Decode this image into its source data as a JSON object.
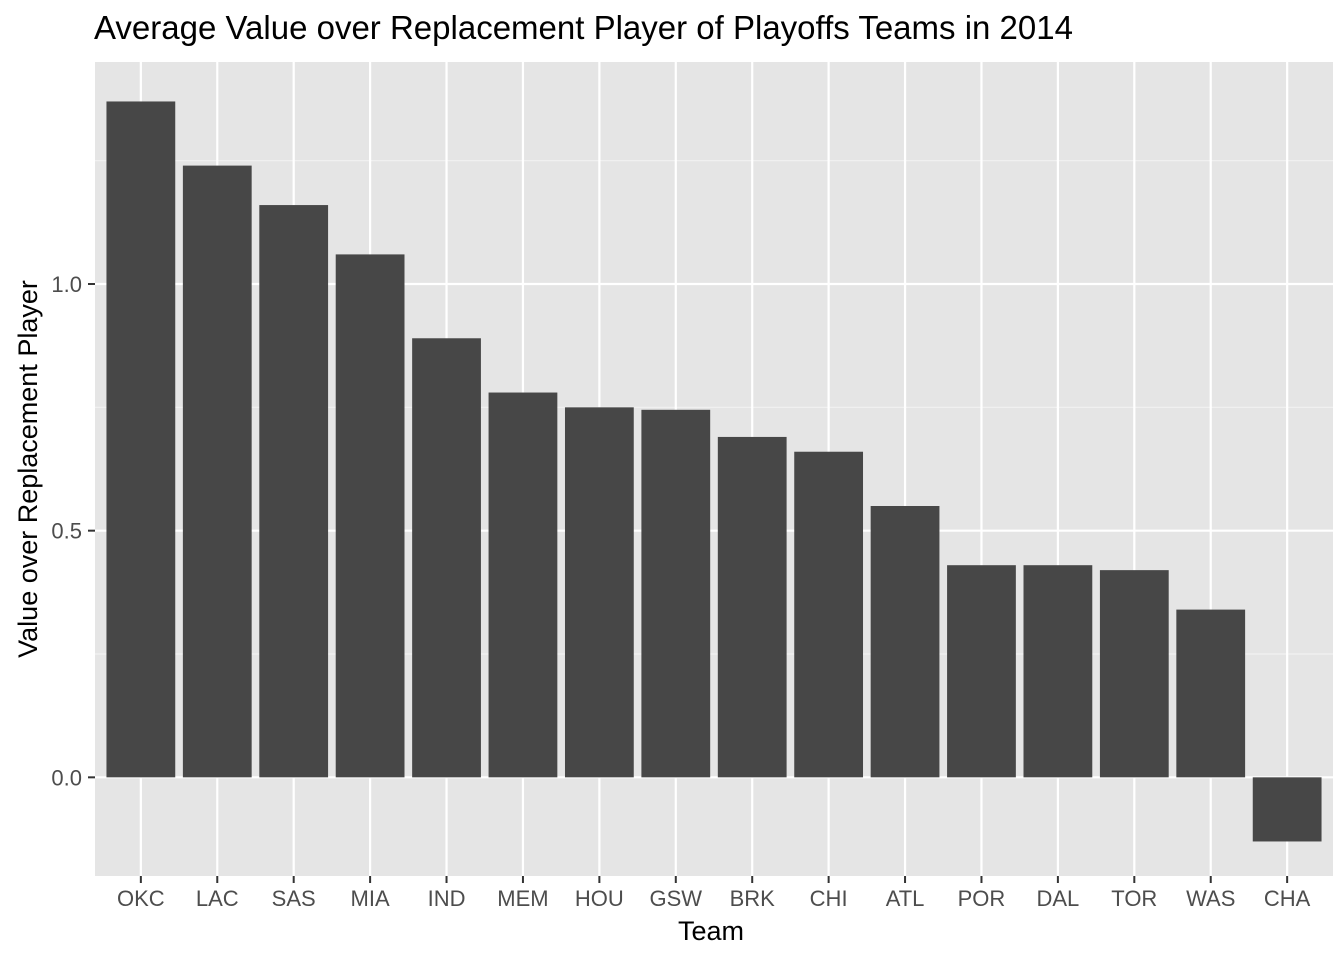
{
  "chart_data": {
    "type": "bar",
    "title": "Average Value over Replacement Player of Playoffs Teams in 2014",
    "xlabel": "Team",
    "ylabel": "Value over Replacement Player",
    "categories": [
      "OKC",
      "LAC",
      "SAS",
      "MIA",
      "IND",
      "MEM",
      "HOU",
      "GSW",
      "BRK",
      "CHI",
      "ATL",
      "POR",
      "DAL",
      "TOR",
      "WAS",
      "CHA"
    ],
    "values": [
      1.37,
      1.24,
      1.16,
      1.06,
      0.89,
      0.78,
      0.75,
      0.745,
      0.69,
      0.66,
      0.55,
      0.43,
      0.43,
      0.42,
      0.34,
      -0.13
    ],
    "ylim": [
      -0.2,
      1.45
    ],
    "yticks": [
      0.0,
      0.5,
      1.0
    ],
    "ytick_labels": [
      "0.0",
      "0.5",
      "1.0"
    ],
    "grid": true,
    "legend": "none",
    "colors": {
      "bar": "#474747",
      "panel_background": "#e5e5e5",
      "grid_major": "#ffffff",
      "grid_minor": "#f2f2f2",
      "tick_text": "#4d4d4d",
      "tick_mark": "#333333"
    }
  }
}
